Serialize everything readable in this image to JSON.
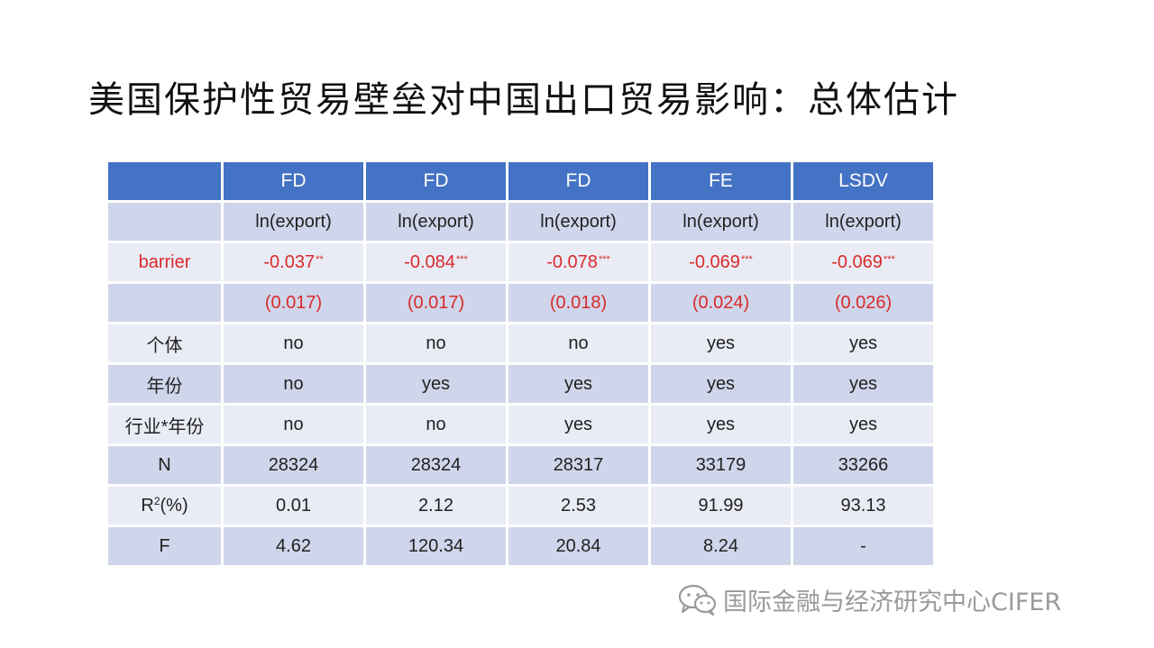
{
  "title": "美国保护性贸易壁垒对中国出口贸易影响：总体估计",
  "table": {
    "headers": [
      "",
      "FD",
      "FD",
      "FD",
      "FE",
      "LSDV"
    ],
    "dependent_row": {
      "label": "",
      "cells": [
        "ln(export)",
        "ln(export)",
        "ln(export)",
        "ln(export)",
        "ln(export)"
      ]
    },
    "barrier_row": {
      "label": "barrier",
      "coefficients": [
        {
          "value": "-0.037",
          "stars": "**"
        },
        {
          "value": "-0.084",
          "stars": "***"
        },
        {
          "value": "-0.078",
          "stars": "***"
        },
        {
          "value": "-0.069",
          "stars": "***"
        },
        {
          "value": "-0.069",
          "stars": "***"
        }
      ]
    },
    "se_row": {
      "label": "",
      "cells": [
        "(0.017)",
        "(0.017)",
        "(0.018)",
        "(0.024)",
        "(0.026)"
      ]
    },
    "individual_row": {
      "label": "个体",
      "cells": [
        "no",
        "no",
        "no",
        "yes",
        "yes"
      ]
    },
    "year_row": {
      "label": "年份",
      "cells": [
        "no",
        "yes",
        "yes",
        "yes",
        "yes"
      ]
    },
    "industry_year_row": {
      "label": "行业*年份",
      "cells": [
        "no",
        "no",
        "yes",
        "yes",
        "yes"
      ]
    },
    "n_row": {
      "label": "N",
      "cells": [
        "28324",
        "28324",
        "28317",
        "33179",
        "33266"
      ]
    },
    "r2_row": {
      "label_base": "R",
      "label_sup": "2",
      "label_suffix": "(%)",
      "cells": [
        "0.01",
        "2.12",
        "2.53",
        "91.99",
        "93.13"
      ]
    },
    "f_row": {
      "label": "F",
      "cells": [
        "4.62",
        "120.34",
        "20.84",
        "8.24",
        "-"
      ]
    }
  },
  "watermark": {
    "text": "国际金融与经济研究中心CIFER",
    "icon": "wechat-icon"
  },
  "colors": {
    "header_bg": "#4472c4",
    "row_dark": "#cfd5ea",
    "row_light": "#e9ebf5",
    "highlight_red": "#d92b2b"
  }
}
